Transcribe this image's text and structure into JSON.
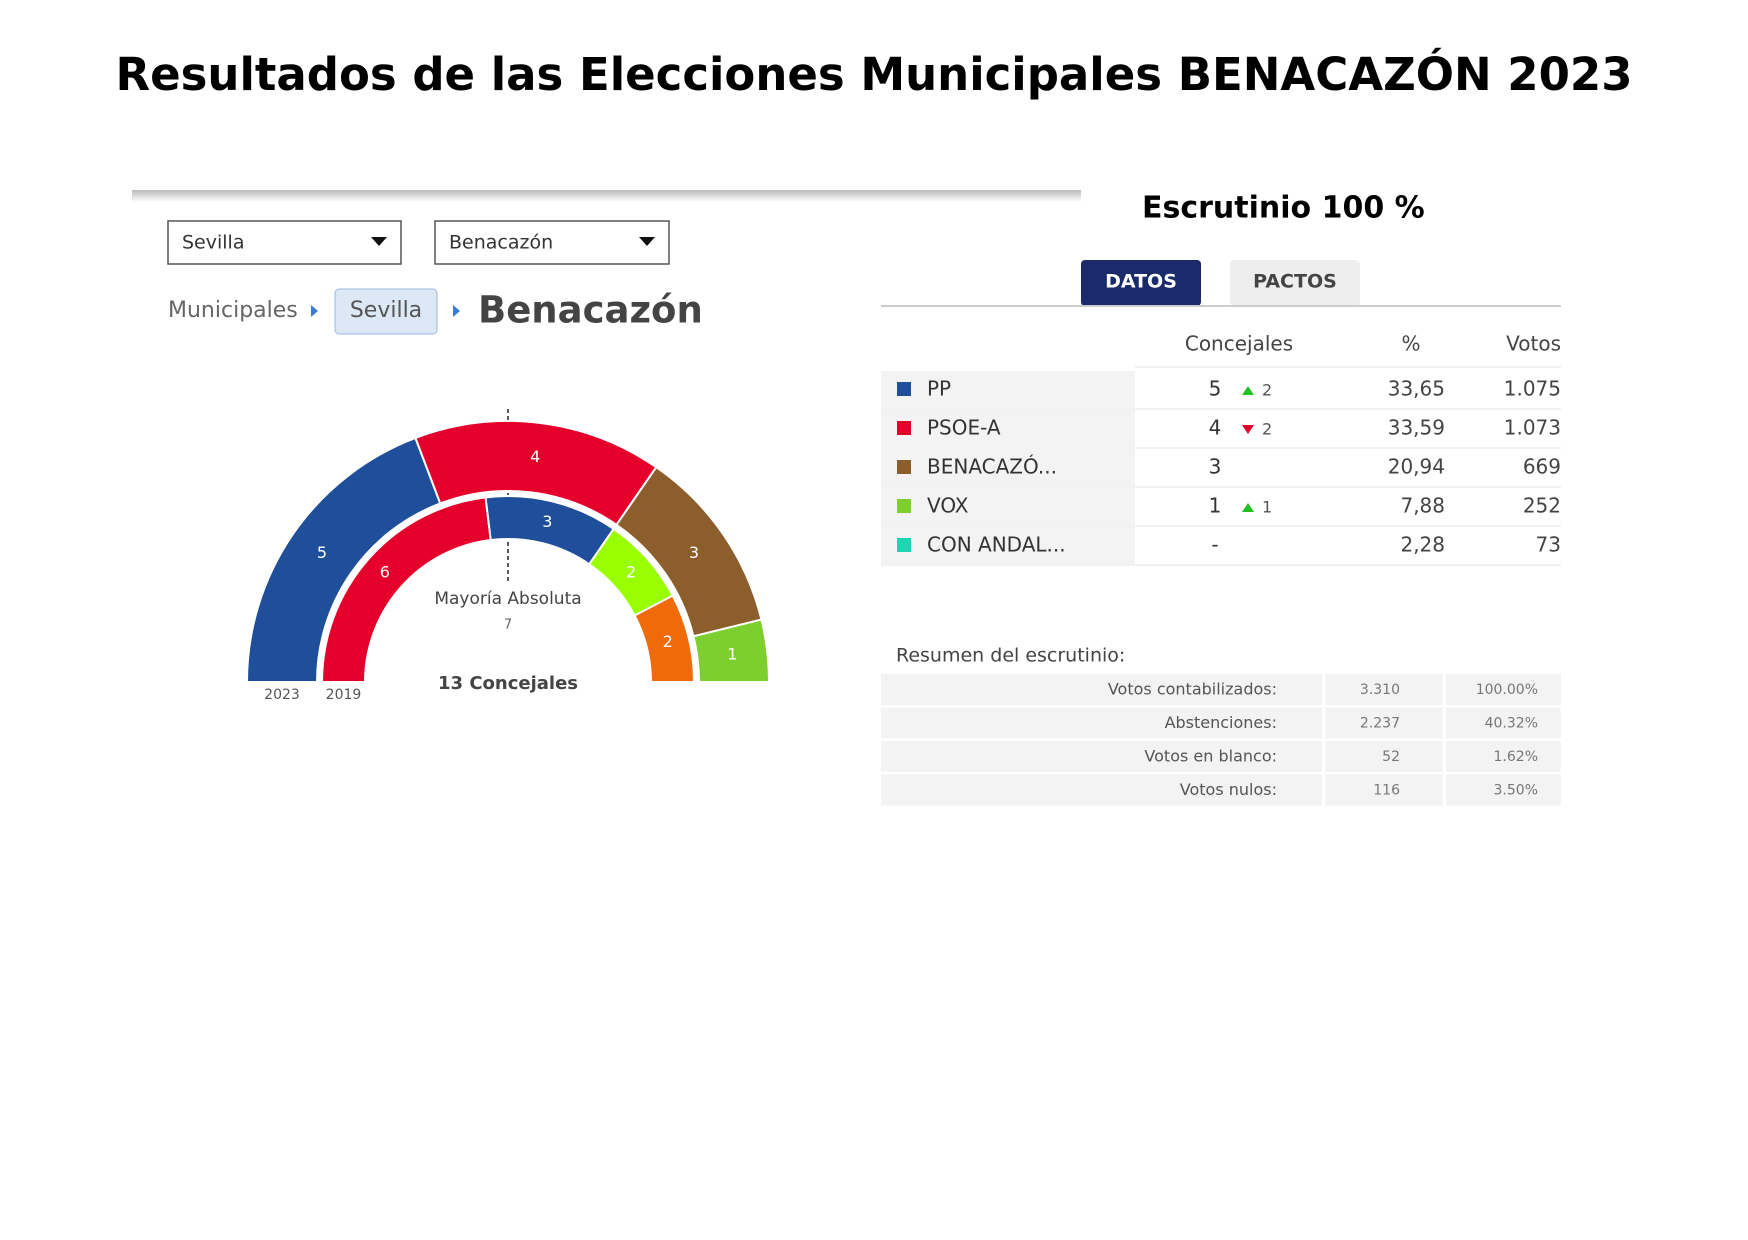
{
  "title": "Resultados de las Elecciones Municipales BENACAZÓN 2023",
  "selects": [
    "Sevilla",
    "Benacazón"
  ],
  "breadcrumb": [
    "Municipales",
    "Sevilla",
    "Benacazón"
  ],
  "chart_data": {
    "type": "parliament",
    "series": [
      {
        "name": "2023",
        "values": [
          5,
          4,
          3,
          1
        ],
        "colors": [
          "#1f4e9a",
          "#e4002b",
          "#8b5e2b",
          "#7ccf2e"
        ]
      },
      {
        "name": "2019",
        "values": [
          6,
          3,
          2,
          2
        ],
        "colors": [
          "#e4002b",
          "#1f4e9a",
          "#99ff00",
          "#f06a0a"
        ]
      }
    ],
    "majority_label": "Mayoría Absoluta",
    "majority": 7,
    "total_label": "13 Concejales"
  },
  "escrutinio": "Escrutinio 100 %",
  "tabs": [
    "DATOS",
    "PACTOS"
  ],
  "table": {
    "header": [
      "Concejales",
      "%",
      "Votos"
    ],
    "rows": [
      {
        "color": "#1f4e9a",
        "name": "PP",
        "seats": "5",
        "change": {
          "dir": "up",
          "value": "2"
        },
        "pct": "33,65",
        "votes": "1.075"
      },
      {
        "color": "#e4002b",
        "name": "PSOE-A",
        "seats": "4",
        "change": {
          "dir": "down",
          "value": "2"
        },
        "pct": "33,59",
        "votes": "1.073"
      },
      {
        "color": "#8b5e2b",
        "name": "BENACAZÓ...",
        "seats": "3",
        "pct": "20,94",
        "votes": "669"
      },
      {
        "color": "#7ccf2e",
        "name": "VOX",
        "seats": "1",
        "change": {
          "dir": "up",
          "value": "1"
        },
        "pct": "7,88",
        "votes": "252"
      },
      {
        "color": "#1fd3b5",
        "name": "CON ANDAL...",
        "seats": "-",
        "pct": "2,28",
        "votes": "73"
      }
    ]
  },
  "summary": {
    "title": "Resumen del escrutinio:",
    "rows": [
      [
        "Votos contabilizados:",
        "3.310",
        "100.00%"
      ],
      [
        "Abstenciones:",
        "2.237",
        "40.32%"
      ],
      [
        "Votos en blanco:",
        "52",
        "1.62%"
      ],
      [
        "Votos nulos:",
        "116",
        "3.50%"
      ]
    ]
  }
}
